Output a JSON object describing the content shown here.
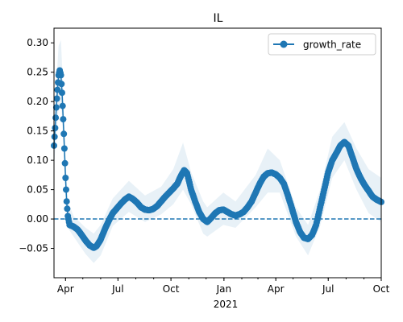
{
  "colors": {
    "series": "#1f77b4",
    "band": "#1f77b4",
    "axis": "#000000"
  },
  "chart_data": {
    "type": "line",
    "title": "IL",
    "xlabel": "2021",
    "ylabel": "",
    "xlim": [
      "2020-03-12",
      "2021-10-01"
    ],
    "ylim": [
      -0.1,
      0.325
    ],
    "x_ticks": [
      {
        "date": "2020-04-01",
        "label": "Apr"
      },
      {
        "date": "2020-07-01",
        "label": "Jul"
      },
      {
        "date": "2020-10-01",
        "label": "Oct"
      },
      {
        "date": "2021-01-01",
        "label": "Jan"
      },
      {
        "date": "2021-04-01",
        "label": "Apr"
      },
      {
        "date": "2021-07-01",
        "label": "Jul"
      },
      {
        "date": "2021-10-01",
        "label": "Oct"
      }
    ],
    "y_ticks": [
      -0.05,
      0.0,
      0.05,
      0.1,
      0.15,
      0.2,
      0.25,
      0.3
    ],
    "y_tick_labels": [
      "−0.05",
      "0.00",
      "0.05",
      "0.10",
      "0.15",
      "0.20",
      "0.25",
      "0.30"
    ],
    "legend": {
      "position": "top-right",
      "entries": [
        "growth_rate"
      ]
    },
    "reference_line": {
      "y": 0,
      "style": "dashed"
    },
    "series": [
      {
        "name": "growth_rate",
        "points": [
          [
            "2020-03-12",
            0.125
          ],
          [
            "2020-03-14",
            0.155
          ],
          [
            "2020-03-16",
            0.19
          ],
          [
            "2020-03-18",
            0.22
          ],
          [
            "2020-03-20",
            0.245
          ],
          [
            "2020-03-22",
            0.253
          ],
          [
            "2020-03-24",
            0.245
          ],
          [
            "2020-03-26",
            0.215
          ],
          [
            "2020-03-28",
            0.17
          ],
          [
            "2020-03-30",
            0.12
          ],
          [
            "2020-04-01",
            0.07
          ],
          [
            "2020-04-03",
            0.03
          ],
          [
            "2020-04-05",
            0.005
          ],
          [
            "2020-04-08",
            -0.01
          ],
          [
            "2020-04-15",
            -0.013
          ],
          [
            "2020-04-22",
            -0.018
          ],
          [
            "2020-04-29",
            -0.027
          ],
          [
            "2020-05-06",
            -0.037
          ],
          [
            "2020-05-13",
            -0.045
          ],
          [
            "2020-05-20",
            -0.049
          ],
          [
            "2020-05-25",
            -0.046
          ],
          [
            "2020-06-01",
            -0.035
          ],
          [
            "2020-06-08",
            -0.018
          ],
          [
            "2020-06-15",
            -0.003
          ],
          [
            "2020-06-22",
            0.01
          ],
          [
            "2020-06-29",
            0.018
          ],
          [
            "2020-07-06",
            0.026
          ],
          [
            "2020-07-13",
            0.033
          ],
          [
            "2020-07-20",
            0.038
          ],
          [
            "2020-07-27",
            0.034
          ],
          [
            "2020-08-03",
            0.028
          ],
          [
            "2020-08-10",
            0.02
          ],
          [
            "2020-08-17",
            0.016
          ],
          [
            "2020-08-24",
            0.015
          ],
          [
            "2020-08-31",
            0.017
          ],
          [
            "2020-09-07",
            0.022
          ],
          [
            "2020-09-14",
            0.03
          ],
          [
            "2020-09-21",
            0.038
          ],
          [
            "2020-09-28",
            0.045
          ],
          [
            "2020-10-05",
            0.052
          ],
          [
            "2020-10-12",
            0.06
          ],
          [
            "2020-10-19",
            0.075
          ],
          [
            "2020-10-24",
            0.083
          ],
          [
            "2020-10-29",
            0.078
          ],
          [
            "2020-11-05",
            0.05
          ],
          [
            "2020-11-12",
            0.03
          ],
          [
            "2020-11-19",
            0.012
          ],
          [
            "2020-11-26",
            0.0
          ],
          [
            "2020-12-03",
            -0.005
          ],
          [
            "2020-12-10",
            0.002
          ],
          [
            "2020-12-17",
            0.01
          ],
          [
            "2020-12-24",
            0.015
          ],
          [
            "2020-12-31",
            0.016
          ],
          [
            "2021-01-07",
            0.012
          ],
          [
            "2021-01-14",
            0.008
          ],
          [
            "2021-01-21",
            0.006
          ],
          [
            "2021-01-28",
            0.008
          ],
          [
            "2021-02-04",
            0.012
          ],
          [
            "2021-02-11",
            0.02
          ],
          [
            "2021-02-18",
            0.03
          ],
          [
            "2021-02-25",
            0.045
          ],
          [
            "2021-03-04",
            0.06
          ],
          [
            "2021-03-11",
            0.072
          ],
          [
            "2021-03-18",
            0.078
          ],
          [
            "2021-03-25",
            0.079
          ],
          [
            "2021-04-01",
            0.076
          ],
          [
            "2021-04-08",
            0.07
          ],
          [
            "2021-04-15",
            0.06
          ],
          [
            "2021-04-22",
            0.04
          ],
          [
            "2021-04-29",
            0.018
          ],
          [
            "2021-05-06",
            -0.005
          ],
          [
            "2021-05-13",
            -0.022
          ],
          [
            "2021-05-20",
            -0.032
          ],
          [
            "2021-05-27",
            -0.034
          ],
          [
            "2021-06-03",
            -0.027
          ],
          [
            "2021-06-10",
            -0.01
          ],
          [
            "2021-06-17",
            0.02
          ],
          [
            "2021-06-24",
            0.05
          ],
          [
            "2021-07-01",
            0.08
          ],
          [
            "2021-07-08",
            0.1
          ],
          [
            "2021-07-15",
            0.112
          ],
          [
            "2021-07-22",
            0.125
          ],
          [
            "2021-07-29",
            0.131
          ],
          [
            "2021-08-05",
            0.125
          ],
          [
            "2021-08-12",
            0.105
          ],
          [
            "2021-08-19",
            0.085
          ],
          [
            "2021-08-26",
            0.07
          ],
          [
            "2021-09-02",
            0.058
          ],
          [
            "2021-09-09",
            0.048
          ],
          [
            "2021-09-16",
            0.038
          ],
          [
            "2021-09-23",
            0.033
          ],
          [
            "2021-10-01",
            0.029
          ]
        ]
      }
    ],
    "confidence_band": [
      [
        "2020-03-12",
        0.09,
        0.165
      ],
      [
        "2020-03-20",
        0.19,
        0.295
      ],
      [
        "2020-03-24",
        0.2,
        0.305
      ],
      [
        "2020-03-28",
        0.13,
        0.22
      ],
      [
        "2020-04-01",
        0.04,
        0.11
      ],
      [
        "2020-04-05",
        -0.015,
        0.03
      ],
      [
        "2020-04-15",
        -0.03,
        0.005
      ],
      [
        "2020-05-06",
        -0.06,
        -0.015
      ],
      [
        "2020-05-20",
        -0.075,
        -0.025
      ],
      [
        "2020-06-01",
        -0.062,
        -0.01
      ],
      [
        "2020-06-22",
        -0.012,
        0.035
      ],
      [
        "2020-07-20",
        0.012,
        0.065
      ],
      [
        "2020-08-17",
        -0.005,
        0.04
      ],
      [
        "2020-09-14",
        0.008,
        0.055
      ],
      [
        "2020-10-05",
        0.025,
        0.085
      ],
      [
        "2020-10-22",
        0.05,
        0.13
      ],
      [
        "2020-11-05",
        0.025,
        0.08
      ],
      [
        "2020-11-26",
        -0.025,
        0.03
      ],
      [
        "2020-12-03",
        -0.03,
        0.02
      ],
      [
        "2020-12-31",
        -0.01,
        0.045
      ],
      [
        "2021-01-21",
        -0.015,
        0.03
      ],
      [
        "2021-02-25",
        0.02,
        0.075
      ],
      [
        "2021-03-18",
        0.045,
        0.12
      ],
      [
        "2021-04-08",
        0.045,
        0.1
      ],
      [
        "2021-05-06",
        -0.03,
        0.02
      ],
      [
        "2021-05-27",
        -0.062,
        -0.01
      ],
      [
        "2021-06-17",
        -0.012,
        0.05
      ],
      [
        "2021-07-08",
        0.07,
        0.14
      ],
      [
        "2021-07-29",
        0.1,
        0.165
      ],
      [
        "2021-08-19",
        0.05,
        0.12
      ],
      [
        "2021-09-09",
        0.01,
        0.085
      ],
      [
        "2021-10-01",
        -0.005,
        0.07
      ]
    ]
  }
}
